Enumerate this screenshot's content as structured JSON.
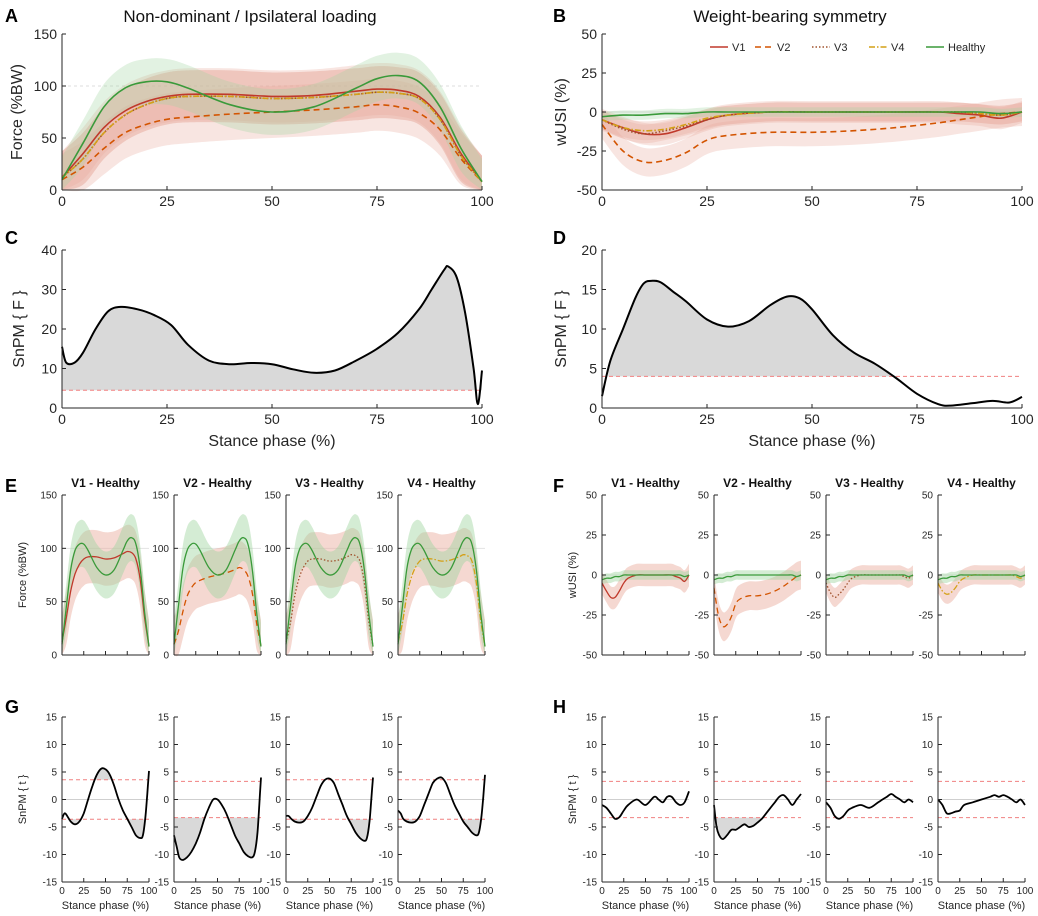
{
  "figure": {
    "title_left": "Non-dominant / Ipsilateral loading",
    "title_right": "Weight-bearing symmetry",
    "panel_letters": [
      "A",
      "B",
      "C",
      "D",
      "E",
      "F",
      "G",
      "H"
    ],
    "xlabel": "Stance phase (%)"
  },
  "colors": {
    "V1": "#c0392b",
    "V2": "#d35400",
    "V3": "#a0522d",
    "V4": "#d4a017",
    "Healthy": "#3a9a3a",
    "band_V": "#e8a99a",
    "band_healthy": "#9fd49f",
    "threshold": "#f08080",
    "fill": "#d9d9d9"
  },
  "chart_data": [
    {
      "id": "A",
      "type": "line",
      "title": "Non-dominant / Ipsilateral loading",
      "xlabel": "",
      "ylabel": "Force (%BW)",
      "xlim": [
        0,
        100
      ],
      "ylim": [
        0,
        150
      ],
      "xticks": [
        "0",
        "25",
        "50",
        "75",
        "100"
      ],
      "yticks": [
        "0",
        "50",
        "100",
        "150"
      ],
      "x": [
        0,
        5,
        10,
        15,
        20,
        25,
        30,
        40,
        50,
        60,
        70,
        75,
        80,
        85,
        90,
        95,
        100
      ],
      "series": [
        {
          "name": "V1",
          "values": [
            12,
            35,
            60,
            76,
            85,
            90,
            92,
            92,
            90,
            91,
            95,
            97,
            96,
            90,
            70,
            35,
            8
          ],
          "sd": 25
        },
        {
          "name": "V2",
          "values": [
            10,
            22,
            40,
            55,
            63,
            68,
            70,
            73,
            75,
            77,
            80,
            82,
            80,
            74,
            58,
            30,
            8
          ],
          "sd": 25
        },
        {
          "name": "V3",
          "values": [
            12,
            30,
            55,
            72,
            82,
            88,
            90,
            90,
            88,
            89,
            92,
            94,
            93,
            88,
            68,
            33,
            8
          ],
          "sd": 25
        },
        {
          "name": "V4",
          "values": [
            12,
            30,
            55,
            72,
            82,
            88,
            90,
            90,
            88,
            89,
            92,
            94,
            93,
            88,
            68,
            33,
            8
          ],
          "sd": 25
        },
        {
          "name": "Healthy",
          "values": [
            10,
            45,
            80,
            98,
            104,
            104,
            98,
            82,
            75,
            80,
            98,
            107,
            110,
            104,
            80,
            40,
            8
          ],
          "sd": 22
        }
      ]
    },
    {
      "id": "B",
      "type": "line",
      "title": "Weight-bearing symmetry",
      "xlabel": "",
      "ylabel": "wUSI (%)",
      "xlim": [
        0,
        100
      ],
      "ylim": [
        -50,
        50
      ],
      "xticks": [
        "0",
        "25",
        "50",
        "75",
        "100"
      ],
      "yticks": [
        "-50",
        "-25",
        "0",
        "25",
        "50"
      ],
      "legend": [
        "V1",
        "V2",
        "V3",
        "V4",
        "Healthy"
      ],
      "x": [
        0,
        5,
        10,
        15,
        20,
        25,
        30,
        40,
        50,
        60,
        70,
        80,
        85,
        90,
        95,
        100
      ],
      "series": [
        {
          "name": "V1",
          "values": [
            -5,
            -10,
            -14,
            -14,
            -10,
            -5,
            -2,
            0,
            0,
            0,
            0,
            0,
            -1,
            -2,
            -4,
            0
          ],
          "sd": 7
        },
        {
          "name": "V2",
          "values": [
            -8,
            -25,
            -32,
            -31,
            -26,
            -18,
            -15,
            -13,
            -13,
            -12,
            -10,
            -7,
            -5,
            -3,
            -1,
            0
          ],
          "sd": 9
        },
        {
          "name": "V3",
          "values": [
            -5,
            -11,
            -14,
            -12,
            -9,
            -5,
            -2,
            0,
            0,
            0,
            0,
            0,
            0,
            -1,
            -2,
            0
          ],
          "sd": 6
        },
        {
          "name": "V4",
          "values": [
            -5,
            -10,
            -12,
            -11,
            -8,
            -4,
            -2,
            0,
            0,
            0,
            0,
            0,
            0,
            -1,
            -2,
            0
          ],
          "sd": 6
        },
        {
          "name": "Healthy",
          "values": [
            -3,
            -2,
            -2,
            -1,
            -1,
            0,
            0,
            0,
            0,
            0,
            0,
            0,
            0,
            0,
            -1,
            0
          ],
          "sd": 3
        }
      ]
    },
    {
      "id": "C",
      "type": "area",
      "xlabel": "Stance phase (%)",
      "ylabel": "SnPM { F }",
      "xlim": [
        0,
        100
      ],
      "ylim": [
        0,
        40
      ],
      "xticks": [
        "0",
        "25",
        "50",
        "75",
        "100"
      ],
      "yticks": [
        "0",
        "10",
        "20",
        "30",
        "40"
      ],
      "threshold": 4.5,
      "x": [
        0,
        1,
        3,
        5,
        8,
        11,
        14,
        18,
        22,
        26,
        30,
        35,
        40,
        45,
        50,
        55,
        60,
        65,
        70,
        75,
        80,
        85,
        88,
        91,
        92,
        94,
        96,
        98,
        99,
        100
      ],
      "values": [
        15.5,
        11.5,
        11.5,
        14,
        20,
        24.5,
        25.6,
        25,
        23.5,
        21,
        16,
        12,
        11.1,
        11.4,
        11.1,
        9.8,
        8.9,
        9.5,
        12,
        15,
        19,
        25,
        30,
        35,
        35.8,
        33,
        24,
        10,
        1,
        9.5
      ]
    },
    {
      "id": "D",
      "type": "area",
      "xlabel": "Stance phase (%)",
      "ylabel": "SnPM { F }",
      "xlim": [
        0,
        100
      ],
      "ylim": [
        0,
        20
      ],
      "xticks": [
        "0",
        "25",
        "50",
        "75",
        "100"
      ],
      "yticks": [
        "0",
        "5",
        "10",
        "15",
        "20"
      ],
      "threshold": 4.0,
      "x": [
        0,
        2,
        5,
        8,
        10,
        12,
        14,
        17,
        20,
        25,
        30,
        35,
        40,
        44,
        47,
        50,
        55,
        60,
        65,
        70,
        75,
        80,
        83,
        88,
        93,
        97,
        100
      ],
      "values": [
        1.5,
        6,
        10,
        14,
        15.8,
        16.1,
        15.9,
        14.7,
        13.5,
        11.2,
        10.3,
        11,
        13,
        14.1,
        13.9,
        12.5,
        9.2,
        7,
        5.6,
        3.8,
        1.8,
        0.5,
        0.3,
        0.6,
        0.9,
        0.7,
        1.4
      ]
    },
    {
      "id": "E",
      "type": "line",
      "ylabel": "Force (%BW)",
      "xlim": [
        0,
        100
      ],
      "ylim": [
        0,
        150
      ],
      "yticks": [
        "0",
        "50",
        "100",
        "150"
      ],
      "subplots": [
        {
          "title": "V1 - Healthy",
          "series": [
            "V1",
            "Healthy"
          ]
        },
        {
          "title": "V2 - Healthy",
          "series": [
            "V2",
            "Healthy"
          ]
        },
        {
          "title": "V3 - Healthy",
          "series": [
            "V3",
            "Healthy"
          ]
        },
        {
          "title": "V4 - Healthy",
          "series": [
            "V4",
            "Healthy"
          ]
        }
      ]
    },
    {
      "id": "F",
      "type": "line",
      "ylabel": "wUSI (%)",
      "xlim": [
        0,
        100
      ],
      "ylim": [
        -50,
        50
      ],
      "yticks": [
        "-50",
        "-25",
        "0",
        "25",
        "50"
      ],
      "subplots": [
        {
          "title": "V1 - Healthy",
          "series": [
            "V1",
            "Healthy"
          ]
        },
        {
          "title": "V2 - Healthy",
          "series": [
            "V2",
            "Healthy"
          ]
        },
        {
          "title": "V3 - Healthy",
          "series": [
            "V3",
            "Healthy"
          ]
        },
        {
          "title": "V4 - Healthy",
          "series": [
            "V4",
            "Healthy"
          ]
        }
      ]
    },
    {
      "id": "G",
      "type": "area",
      "ylabel": "SnPM { t }",
      "xlabel": "Stance phase (%)",
      "xlim": [
        0,
        100
      ],
      "ylim": [
        -15,
        15
      ],
      "yticks": [
        "-15",
        "-10",
        "-5",
        "0",
        "5",
        "10",
        "15"
      ],
      "xticks": [
        "0",
        "25",
        "50",
        "75",
        "100"
      ],
      "subplots": [
        {
          "threshold": 3.6,
          "x": [
            0,
            3,
            6,
            10,
            15,
            20,
            25,
            30,
            35,
            40,
            45,
            50,
            55,
            60,
            65,
            70,
            75,
            80,
            85,
            90,
            93,
            96,
            98,
            100
          ],
          "values": [
            -3.5,
            -2.5,
            -3,
            -4,
            -4.5,
            -4,
            -2.5,
            0,
            2.5,
            4.5,
            5.6,
            5.5,
            4.5,
            2.5,
            0,
            -2,
            -3.5,
            -5,
            -6.5,
            -7,
            -6.5,
            -3,
            1,
            5.2
          ]
        },
        {
          "threshold": 3.3,
          "x": [
            0,
            3,
            6,
            10,
            15,
            20,
            25,
            30,
            35,
            40,
            45,
            50,
            55,
            60,
            65,
            70,
            75,
            80,
            85,
            90,
            93,
            96,
            98,
            100
          ],
          "values": [
            -6.5,
            -8.5,
            -10.5,
            -11,
            -10.5,
            -9.5,
            -8,
            -6,
            -3.5,
            -1.5,
            0,
            0,
            -1,
            -2.5,
            -4.5,
            -6.5,
            -8,
            -9.5,
            -10.3,
            -10.5,
            -9.5,
            -6,
            -1,
            4
          ]
        },
        {
          "threshold": 3.6,
          "x": [
            0,
            3,
            6,
            10,
            15,
            20,
            25,
            30,
            35,
            40,
            45,
            50,
            55,
            60,
            65,
            70,
            75,
            80,
            85,
            90,
            93,
            96,
            98,
            100
          ],
          "values": [
            -3,
            -3,
            -3.5,
            -4,
            -4.2,
            -4,
            -3,
            -1.5,
            0.5,
            2.5,
            3.6,
            3.8,
            3,
            1,
            -1,
            -3,
            -4.5,
            -6,
            -7,
            -7.5,
            -7,
            -4,
            0,
            4
          ]
        },
        {
          "threshold": 3.6,
          "x": [
            0,
            3,
            6,
            10,
            15,
            20,
            25,
            30,
            35,
            40,
            45,
            50,
            55,
            60,
            65,
            70,
            75,
            80,
            85,
            90,
            93,
            96,
            98,
            100
          ],
          "values": [
            -2,
            -2.5,
            -3.5,
            -4,
            -4.2,
            -4,
            -3,
            -1,
            1,
            3,
            3.8,
            4,
            3,
            1,
            -1,
            -2.5,
            -4,
            -5,
            -6,
            -6.5,
            -6,
            -3,
            0.5,
            4.5
          ]
        }
      ]
    },
    {
      "id": "H",
      "type": "area",
      "ylabel": "SnPM { t }",
      "xlabel": "Stance phase (%)",
      "xlim": [
        0,
        100
      ],
      "ylim": [
        -15,
        15
      ],
      "yticks": [
        "-15",
        "-10",
        "-5",
        "0",
        "5",
        "10",
        "15"
      ],
      "xticks": [
        "0",
        "25",
        "50",
        "75",
        "100"
      ],
      "subplots": [
        {
          "threshold": 3.3,
          "x": [
            0,
            5,
            10,
            15,
            20,
            25,
            30,
            40,
            50,
            60,
            65,
            70,
            75,
            80,
            85,
            90,
            95,
            100
          ],
          "values": [
            -1,
            -1.5,
            -2.5,
            -3.5,
            -3.2,
            -2,
            -1,
            0,
            -1,
            0.5,
            0,
            -0.5,
            0.5,
            0.5,
            -0.5,
            -1,
            -0.5,
            1.5
          ]
        },
        {
          "threshold": 3.3,
          "x": [
            0,
            3,
            6,
            10,
            15,
            20,
            25,
            30,
            35,
            40,
            45,
            50,
            55,
            60,
            65,
            70,
            75,
            80,
            85,
            90,
            95,
            100
          ],
          "values": [
            -1,
            -5,
            -6.5,
            -7.2,
            -6.5,
            -5.5,
            -5.5,
            -5,
            -4.5,
            -5,
            -4.8,
            -4.2,
            -3.5,
            -2.5,
            -1.5,
            -0.5,
            0.5,
            0.8,
            0,
            -1,
            0,
            1
          ]
        },
        {
          "threshold": 3.3,
          "x": [
            0,
            5,
            10,
            15,
            20,
            25,
            30,
            40,
            50,
            60,
            65,
            70,
            75,
            80,
            85,
            90,
            95,
            100
          ],
          "values": [
            -0.5,
            -1.5,
            -3,
            -3.5,
            -3,
            -2,
            -1.5,
            -1,
            -1.5,
            -0.5,
            0,
            0.5,
            1,
            0.5,
            0,
            -0.5,
            0,
            -0.5
          ]
        },
        {
          "threshold": 3.3,
          "x": [
            0,
            5,
            10,
            15,
            20,
            25,
            30,
            40,
            50,
            60,
            65,
            70,
            75,
            80,
            85,
            90,
            95,
            100
          ],
          "values": [
            0,
            -1,
            -2.5,
            -2.5,
            -2.2,
            -2,
            -1,
            -0.5,
            0,
            0.5,
            0.8,
            0.5,
            0.8,
            0.5,
            0,
            -0.5,
            0,
            -1
          ]
        }
      ]
    }
  ]
}
